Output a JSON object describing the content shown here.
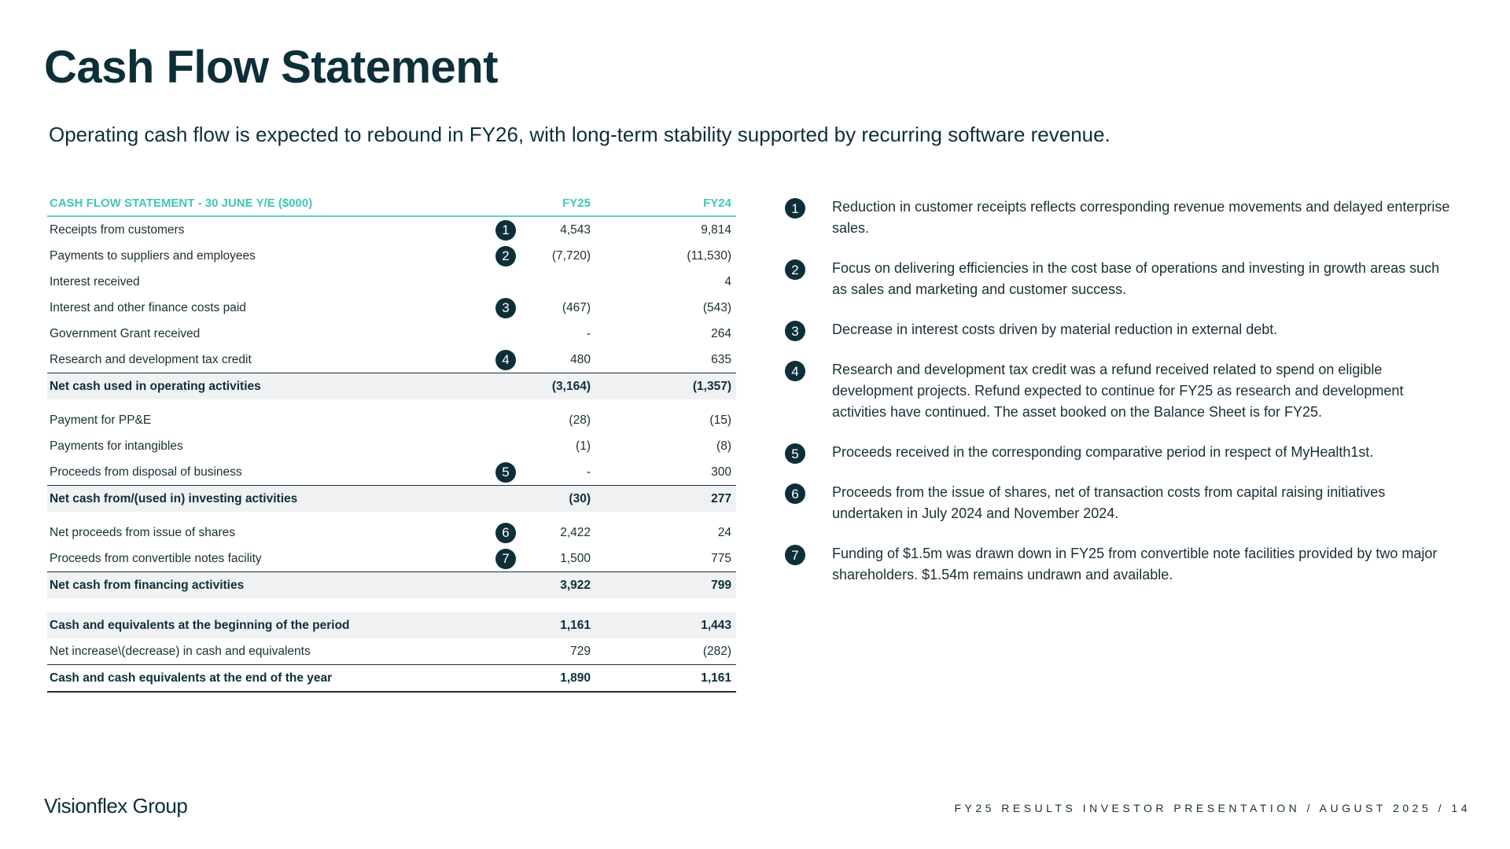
{
  "title": "Cash Flow Statement",
  "subtitle": "Operating cash flow is expected to rebound in FY26, with long-term stability supported by recurring software revenue.",
  "table": {
    "header": {
      "label": "CASH FLOW STATEMENT - 30 JUNE Y/E ($000)",
      "fy25": "FY25",
      "fy24": "FY24"
    },
    "operating": [
      {
        "label": "Receipts from customers",
        "badge": "1",
        "fy25": "4,543",
        "fy24": "9,814"
      },
      {
        "label": "Payments to suppliers and employees",
        "badge": "2",
        "fy25": "(7,720)",
        "fy24": "(11,530)"
      },
      {
        "label": "Interest received",
        "badge": "",
        "fy25": "",
        "fy24": "4"
      },
      {
        "label": "Interest and other finance costs paid",
        "badge": "3",
        "fy25": "(467)",
        "fy24": "(543)"
      },
      {
        "label": "Government Grant received",
        "badge": "",
        "fy25": "-",
        "fy24": "264"
      },
      {
        "label": "Research and development tax credit",
        "badge": "4",
        "fy25": "480",
        "fy24": "635"
      }
    ],
    "operating_total": {
      "label": "Net cash used in operating activities",
      "fy25": "(3,164)",
      "fy24": "(1,357)"
    },
    "investing": [
      {
        "label": "Payment for PP&E",
        "badge": "",
        "fy25": "(28)",
        "fy24": "(15)"
      },
      {
        "label": "Payments for intangibles",
        "badge": "",
        "fy25": "(1)",
        "fy24": "(8)"
      },
      {
        "label": "Proceeds from disposal of business",
        "badge": "5",
        "fy25": "-",
        "fy24": "300"
      }
    ],
    "investing_total": {
      "label": "Net cash from/(used in) investing activities",
      "fy25": "(30)",
      "fy24": "277"
    },
    "financing": [
      {
        "label": "Net proceeds from issue of shares",
        "badge": "6",
        "fy25": "2,422",
        "fy24": "24"
      },
      {
        "label": "Proceeds from convertible notes facility",
        "badge": "7",
        "fy25": "1,500",
        "fy24": "775"
      }
    ],
    "financing_total": {
      "label": "Net cash from financing activities",
      "fy25": "3,922",
      "fy24": "799"
    },
    "opening": {
      "label": "Cash and equivalents at the beginning of the period",
      "fy25": "1,161",
      "fy24": "1,443"
    },
    "net_change": {
      "label": "Net increase\\(decrease) in cash and equivalents",
      "fy25": "729",
      "fy24": "(282)"
    },
    "closing": {
      "label": "Cash and cash equivalents at the end of the year",
      "fy25": "1,890",
      "fy24": "1,161"
    }
  },
  "notes": [
    {
      "num": "1",
      "text": "Reduction in customer receipts reflects corresponding revenue movements and delayed enterprise sales."
    },
    {
      "num": "2",
      "text": "Focus on delivering efficiencies in the cost base of operations and investing in growth areas such as sales and marketing and customer success."
    },
    {
      "num": "3",
      "text": "Decrease in interest costs driven by material reduction in external debt."
    },
    {
      "num": "4",
      "text": "Research and development tax credit was a refund received related to spend on eligible development projects. Refund expected to continue for FY25 as research and development activities have continued. The asset booked on the Balance Sheet is for FY25."
    },
    {
      "num": "5",
      "text": "Proceeds received in the corresponding comparative period in respect of MyHealth1st."
    },
    {
      "num": "6",
      "text": "Proceeds from the issue of shares, net of transaction costs from capital raising initiatives undertaken in July 2024 and November 2024."
    },
    {
      "num": "7",
      "text": "Funding of $1.5m was drawn down in FY25 from convertible note facilities provided by two major shareholders. $1.54m remains undrawn and available."
    }
  ],
  "footer": {
    "logo": "Visionflex Group",
    "text": "FY25 RESULTS INVESTOR PRESENTATION  /  AUGUST 2025  /  14"
  }
}
